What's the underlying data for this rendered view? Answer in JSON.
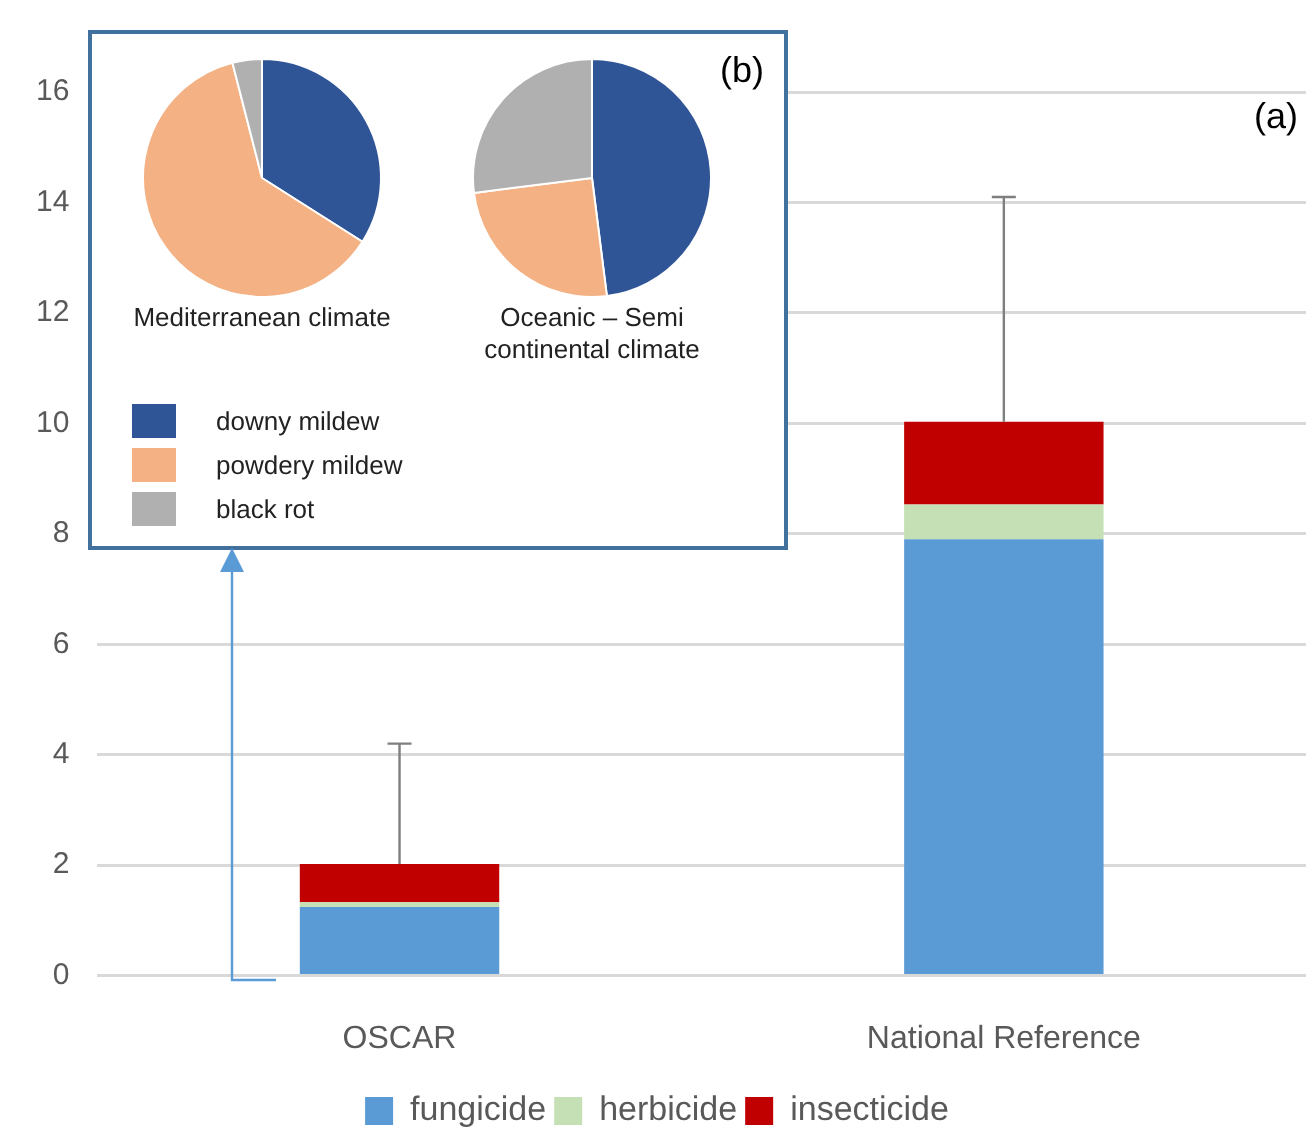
{
  "chart_data": [
    {
      "type": "bar",
      "stacked": true,
      "categories": [
        "OSCAR",
        "National Reference"
      ],
      "series": [
        {
          "name": "fungicide",
          "color": "#5b9bd5",
          "values": [
            1.24,
            7.9
          ]
        },
        {
          "name": "herbicide",
          "color": "#c5e0b4",
          "values": [
            0.09,
            0.63
          ]
        },
        {
          "name": "insecticide",
          "color": "#c00000",
          "values": [
            0.69,
            1.5
          ],
          "errors": [
            [
              2.02,
              4.2
            ],
            [
              10.03,
              14.1
            ]
          ]
        }
      ],
      "ylim": [
        0,
        16
      ],
      "yticks": [
        0,
        2,
        4,
        6,
        8,
        10,
        12,
        14,
        16
      ],
      "grid": "y",
      "legend": "bottom",
      "annotations": [
        "(a)"
      ]
    },
    {
      "type": "pie",
      "categories": [
        "downy mildew",
        "powdery mildew",
        "black rot"
      ],
      "colors": [
        "#2f5597",
        "#f4b183",
        "#b0b0b0"
      ],
      "legend": "bottom",
      "annotations": [
        "(b)"
      ],
      "series": [
        {
          "name": "Mediterranean climate",
          "values": [
            34,
            62,
            4
          ]
        },
        {
          "name": "Oceanic – Semi continental climate",
          "values": [
            48,
            25,
            27
          ]
        }
      ]
    }
  ]
}
